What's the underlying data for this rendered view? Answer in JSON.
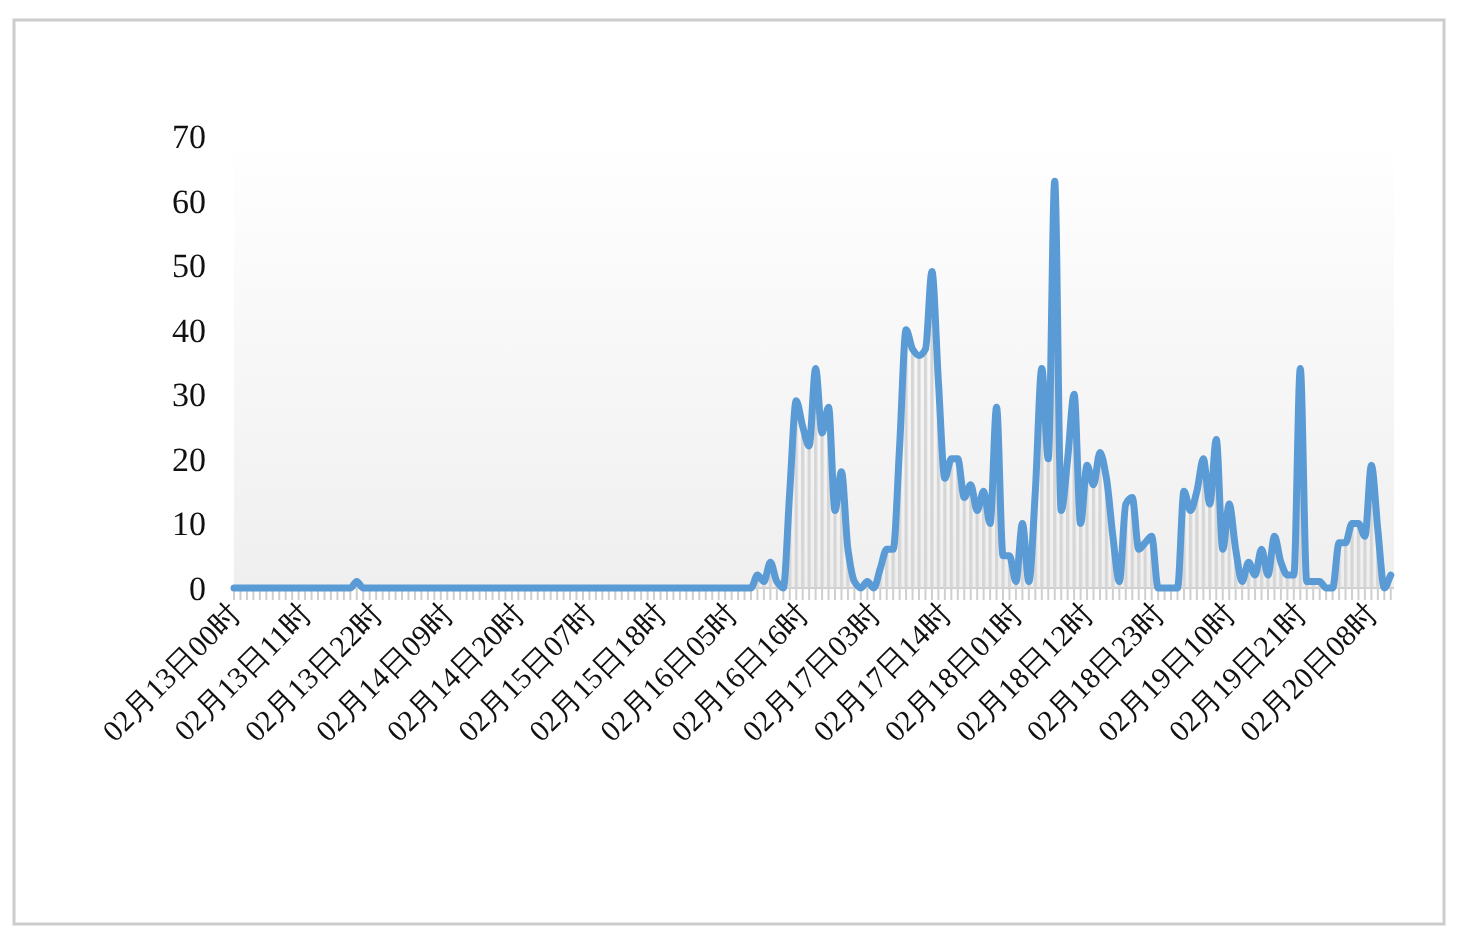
{
  "chart_data": {
    "type": "area",
    "categories": [
      "02月13日00时",
      null,
      null,
      null,
      null,
      null,
      null,
      null,
      null,
      null,
      null,
      "02月13日11时",
      null,
      null,
      null,
      null,
      null,
      null,
      null,
      null,
      null,
      null,
      "02月13日22时",
      null,
      null,
      null,
      null,
      null,
      null,
      null,
      null,
      null,
      null,
      "02月14日09时",
      null,
      null,
      null,
      null,
      null,
      null,
      null,
      null,
      null,
      null,
      "02月14日20时",
      null,
      null,
      null,
      null,
      null,
      null,
      null,
      null,
      null,
      null,
      "02月15日07时",
      null,
      null,
      null,
      null,
      null,
      null,
      null,
      null,
      null,
      null,
      "02月15日18时",
      null,
      null,
      null,
      null,
      null,
      null,
      null,
      null,
      null,
      null,
      "02月16日05时",
      null,
      null,
      null,
      null,
      null,
      null,
      null,
      null,
      null,
      null,
      "02月16日16时",
      null,
      null,
      null,
      null,
      null,
      null,
      null,
      null,
      null,
      null,
      "02月17日03时",
      null,
      null,
      null,
      null,
      null,
      null,
      null,
      null,
      null,
      null,
      "02月17日14时",
      null,
      null,
      null,
      null,
      null,
      null,
      null,
      null,
      null,
      null,
      "02月18日01时",
      null,
      null,
      null,
      null,
      null,
      null,
      null,
      null,
      null,
      null,
      "02月18日12时",
      null,
      null,
      null,
      null,
      null,
      null,
      null,
      null,
      null,
      null,
      "02月18日23时",
      null,
      null,
      null,
      null,
      null,
      null,
      null,
      null,
      null,
      null,
      "02月19日10时",
      null,
      null,
      null,
      null,
      null,
      null,
      null,
      null,
      null,
      null,
      "02月19日21时",
      null,
      null,
      null,
      null,
      null,
      null,
      null,
      null,
      null,
      null,
      "02月20日08时",
      null,
      null,
      null
    ],
    "series": [
      {
        "color": "#5b9bd5",
        "values": [
          0,
          0,
          0,
          0,
          0,
          0,
          0,
          0,
          0,
          0,
          0,
          0,
          0,
          0,
          0,
          0,
          0,
          0,
          0,
          1,
          0,
          0,
          0,
          0,
          0,
          0,
          0,
          0,
          0,
          0,
          0,
          0,
          0,
          0,
          0,
          0,
          0,
          0,
          0,
          0,
          0,
          0,
          0,
          0,
          0,
          0,
          0,
          0,
          0,
          0,
          0,
          0,
          0,
          0,
          0,
          0,
          0,
          0,
          0,
          0,
          0,
          0,
          0,
          0,
          0,
          0,
          0,
          0,
          0,
          0,
          0,
          0,
          0,
          0,
          0,
          0,
          0,
          0,
          0,
          0,
          0,
          2,
          1,
          4,
          1,
          0,
          15,
          29,
          25,
          22,
          34,
          24,
          28,
          12,
          18,
          6,
          1,
          0,
          1,
          0,
          3,
          6,
          6,
          22,
          40,
          37,
          36,
          37,
          49,
          32,
          17,
          20,
          20,
          14,
          16,
          12,
          15,
          10,
          28,
          5,
          5,
          1,
          10,
          1,
          15,
          34,
          20,
          63,
          12,
          20,
          30,
          10,
          19,
          16,
          21,
          17,
          8,
          1,
          13,
          14,
          6,
          7,
          8,
          0,
          0,
          0,
          0,
          15,
          12,
          15,
          20,
          13,
          23,
          6,
          13,
          6,
          1,
          4,
          2,
          6,
          2,
          8,
          4,
          2,
          2,
          34,
          1,
          1,
          1,
          0,
          0,
          7,
          7,
          10,
          10,
          8,
          19,
          9,
          0,
          2
        ]
      }
    ],
    "ylim": [
      0,
      70
    ],
    "yticks": [
      0,
      10,
      20,
      30,
      40,
      50,
      60,
      70
    ]
  }
}
